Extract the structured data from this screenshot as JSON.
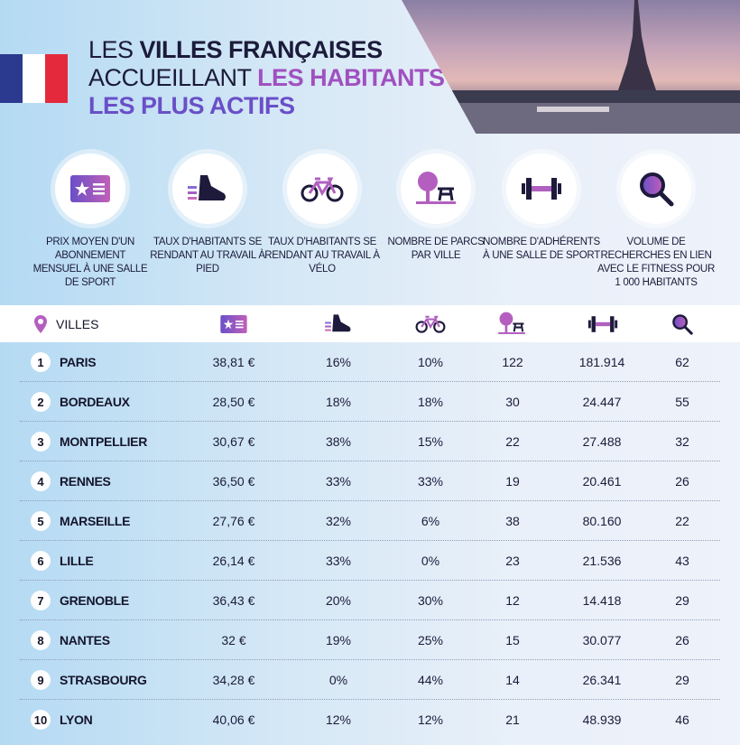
{
  "title": {
    "line1_a": "LES ",
    "line1_b": "VILLES FRANÇAISES",
    "line2_a": "ACCUEILLANT ",
    "line2_b": "LES HABITANTS",
    "line3": "LES PLUS ACTIFS"
  },
  "colors": {
    "flag_blue": "#2b3a8f",
    "flag_white": "#ffffff",
    "flag_red": "#e5293c",
    "accent_purple": "#a050c0",
    "accent_indigo": "#6a4fc8",
    "dark": "#1b1b3a"
  },
  "criteria": [
    {
      "icon": "membership-card-icon",
      "label": "PRIX MOYEN D'UN ABONNEMENT MENSUEL À UNE SALLE DE SPORT"
    },
    {
      "icon": "sneaker-icon",
      "label": "TAUX D'HABITANTS SE RENDANT AU TRAVAIL À PIED"
    },
    {
      "icon": "bicycle-icon",
      "label": "TAUX D'HABITANTS SE RENDANT AU TRAVAIL À VÉLO"
    },
    {
      "icon": "park-icon",
      "label": "NOMBRE DE PARCS PAR VILLE"
    },
    {
      "icon": "dumbbell-icon",
      "label": "NOMBRE D'ADHÉRENTS À UNE SALLE DE SPORT"
    },
    {
      "icon": "magnifier-icon",
      "label": "VOLUME DE RECHERCHES EN LIEN AVEC LE FITNESS POUR 1 000 HABITANTS"
    }
  ],
  "table": {
    "city_header": "VILLES",
    "rows": [
      {
        "rank": "1",
        "city": "PARIS",
        "price": "38,81 €",
        "walk": "16%",
        "bike": "10%",
        "parks": "122",
        "members": "181.914",
        "searches": "62"
      },
      {
        "rank": "2",
        "city": "BORDEAUX",
        "price": "28,50 €",
        "walk": "18%",
        "bike": "18%",
        "parks": "30",
        "members": "24.447",
        "searches": "55"
      },
      {
        "rank": "3",
        "city": "MONTPELLIER",
        "price": "30,67 €",
        "walk": "38%",
        "bike": "15%",
        "parks": "22",
        "members": "27.488",
        "searches": "32"
      },
      {
        "rank": "4",
        "city": "RENNES",
        "price": "36,50 €",
        "walk": "33%",
        "bike": "33%",
        "parks": "19",
        "members": "20.461",
        "searches": "26"
      },
      {
        "rank": "5",
        "city": "MARSEILLE",
        "price": "27,76 €",
        "walk": "32%",
        "bike": "6%",
        "parks": "38",
        "members": "80.160",
        "searches": "22"
      },
      {
        "rank": "6",
        "city": "LILLE",
        "price": "26,14 €",
        "walk": "33%",
        "bike": "0%",
        "parks": "23",
        "members": "21.536",
        "searches": "43"
      },
      {
        "rank": "7",
        "city": "GRENOBLE",
        "price": "36,43 €",
        "walk": "20%",
        "bike": "30%",
        "parks": "12",
        "members": "14.418",
        "searches": "29"
      },
      {
        "rank": "8",
        "city": "NANTES",
        "price": "32 €",
        "walk": "19%",
        "bike": "25%",
        "parks": "15",
        "members": "30.077",
        "searches": "26"
      },
      {
        "rank": "9",
        "city": "STRASBOURG",
        "price": "34,28 €",
        "walk": "0%",
        "bike": "44%",
        "parks": "14",
        "members": "26.341",
        "searches": "29"
      },
      {
        "rank": "10",
        "city": "LYON",
        "price": "40,06 €",
        "walk": "12%",
        "bike": "12%",
        "parks": "21",
        "members": "48.939",
        "searches": "46"
      }
    ]
  }
}
